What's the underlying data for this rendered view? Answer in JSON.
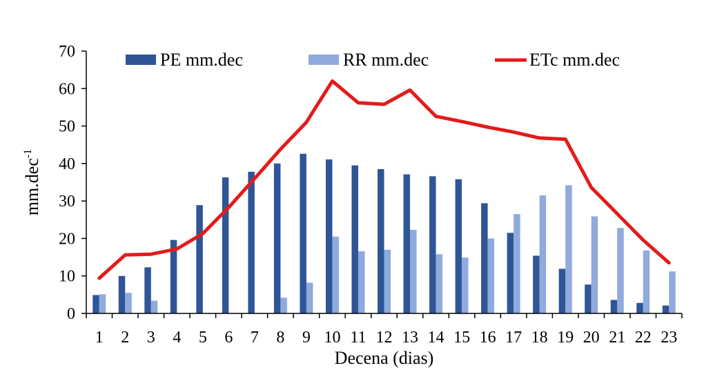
{
  "chart_data": {
    "type": "bar",
    "title": "",
    "xlabel": "Decena (dias)",
    "ylabel": "mm.dec",
    "ylabel_superscript": "-1",
    "ylim": [
      0,
      70
    ],
    "yticks": [
      0,
      10,
      20,
      30,
      40,
      50,
      60,
      70
    ],
    "grid": false,
    "legend_position": "top",
    "categories": [
      "1",
      "2",
      "3",
      "4",
      "5",
      "6",
      "7",
      "8",
      "9",
      "10",
      "11",
      "12",
      "13",
      "14",
      "15",
      "16",
      "17",
      "18",
      "19",
      "20",
      "21",
      "22",
      "23"
    ],
    "series": [
      {
        "name": "PE mm.dec",
        "type": "bar",
        "color": "#2F5597",
        "values": [
          4.9,
          10.0,
          12.3,
          19.6,
          28.9,
          36.3,
          37.8,
          40.0,
          42.6,
          41.1,
          39.5,
          38.5,
          37.1,
          36.6,
          35.8,
          29.4,
          21.5,
          15.4,
          11.9,
          7.7,
          3.6,
          2.8,
          2.1
        ]
      },
      {
        "name": "RR mm.dec",
        "type": "bar",
        "color": "#8FAADC",
        "values": [
          5.1,
          5.5,
          3.4,
          0,
          0,
          0,
          0,
          4.2,
          8.2,
          20.5,
          16.6,
          17.0,
          22.3,
          15.8,
          14.9,
          20.0,
          26.5,
          31.5,
          34.2,
          25.9,
          22.8,
          16.8,
          11.2
        ]
      },
      {
        "name": "ETc mm.dec",
        "type": "line",
        "color": "#E31B1B",
        "values": [
          9.4,
          15.6,
          15.8,
          17.2,
          21.3,
          28.3,
          36.0,
          43.8,
          51.0,
          62.0,
          56.2,
          55.8,
          59.6,
          52.6,
          51.2,
          49.7,
          48.4,
          46.8,
          46.5,
          33.6,
          26.6,
          19.6,
          13.5
        ]
      }
    ]
  }
}
